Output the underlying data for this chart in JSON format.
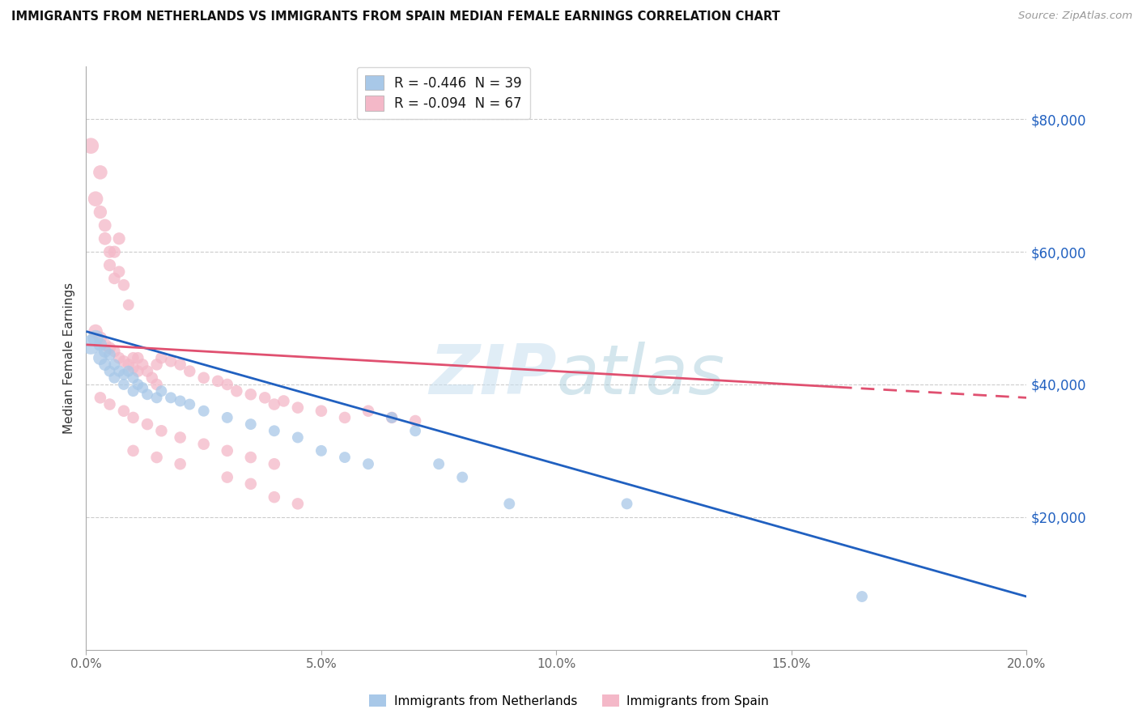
{
  "title": "IMMIGRANTS FROM NETHERLANDS VS IMMIGRANTS FROM SPAIN MEDIAN FEMALE EARNINGS CORRELATION CHART",
  "source": "Source: ZipAtlas.com",
  "ylabel": "Median Female Earnings",
  "yticks": [
    20000,
    40000,
    60000,
    80000
  ],
  "ytick_labels": [
    "$20,000",
    "$40,000",
    "$60,000",
    "$80,000"
  ],
  "ylim": [
    0,
    88000
  ],
  "xlim": [
    0,
    0.2
  ],
  "legend_blue_label": "R = -0.446  N = 39",
  "legend_pink_label": "R = -0.094  N = 67",
  "legend_blue_footer": "Immigrants from Netherlands",
  "legend_pink_footer": "Immigrants from Spain",
  "watermark": "ZIPatlas",
  "blue_color": "#a8c8e8",
  "pink_color": "#f4b8c8",
  "blue_line_color": "#2060c0",
  "pink_line_color": "#e05070",
  "blue_R_color": "#2060c0",
  "pink_R_color": "#e05070",
  "blue_line_y0": 48000,
  "blue_line_y1": 8000,
  "pink_line_y0": 46000,
  "pink_line_y1": 38000,
  "pink_line_solid_end": 0.16,
  "blue_scatter": [
    [
      0.001,
      46000
    ],
    [
      0.002,
      47000
    ],
    [
      0.003,
      44000
    ],
    [
      0.003,
      46000
    ],
    [
      0.004,
      45000
    ],
    [
      0.004,
      43000
    ],
    [
      0.005,
      44500
    ],
    [
      0.005,
      42000
    ],
    [
      0.006,
      43000
    ],
    [
      0.006,
      41000
    ],
    [
      0.007,
      42000
    ],
    [
      0.008,
      41500
    ],
    [
      0.008,
      40000
    ],
    [
      0.009,
      42000
    ],
    [
      0.01,
      41000
    ],
    [
      0.01,
      39000
    ],
    [
      0.011,
      40000
    ],
    [
      0.012,
      39500
    ],
    [
      0.013,
      38500
    ],
    [
      0.015,
      38000
    ],
    [
      0.016,
      39000
    ],
    [
      0.018,
      38000
    ],
    [
      0.02,
      37500
    ],
    [
      0.022,
      37000
    ],
    [
      0.025,
      36000
    ],
    [
      0.03,
      35000
    ],
    [
      0.035,
      34000
    ],
    [
      0.04,
      33000
    ],
    [
      0.045,
      32000
    ],
    [
      0.05,
      30000
    ],
    [
      0.055,
      29000
    ],
    [
      0.06,
      28000
    ],
    [
      0.065,
      35000
    ],
    [
      0.07,
      33000
    ],
    [
      0.075,
      28000
    ],
    [
      0.08,
      26000
    ],
    [
      0.09,
      22000
    ],
    [
      0.115,
      22000
    ],
    [
      0.165,
      8000
    ]
  ],
  "pink_scatter": [
    [
      0.001,
      76000
    ],
    [
      0.002,
      68000
    ],
    [
      0.003,
      72000
    ],
    [
      0.003,
      66000
    ],
    [
      0.004,
      62000
    ],
    [
      0.004,
      64000
    ],
    [
      0.005,
      58000
    ],
    [
      0.005,
      60000
    ],
    [
      0.006,
      60000
    ],
    [
      0.006,
      56000
    ],
    [
      0.007,
      62000
    ],
    [
      0.007,
      57000
    ],
    [
      0.008,
      55000
    ],
    [
      0.009,
      52000
    ],
    [
      0.002,
      48000
    ],
    [
      0.003,
      47000
    ],
    [
      0.004,
      46000
    ],
    [
      0.005,
      45500
    ],
    [
      0.006,
      45000
    ],
    [
      0.007,
      44000
    ],
    [
      0.008,
      43500
    ],
    [
      0.009,
      43000
    ],
    [
      0.01,
      44000
    ],
    [
      0.01,
      42500
    ],
    [
      0.011,
      44000
    ],
    [
      0.011,
      42000
    ],
    [
      0.012,
      43000
    ],
    [
      0.013,
      42000
    ],
    [
      0.014,
      41000
    ],
    [
      0.015,
      43000
    ],
    [
      0.015,
      40000
    ],
    [
      0.016,
      44000
    ],
    [
      0.018,
      43500
    ],
    [
      0.02,
      43000
    ],
    [
      0.022,
      42000
    ],
    [
      0.025,
      41000
    ],
    [
      0.028,
      40500
    ],
    [
      0.03,
      40000
    ],
    [
      0.032,
      39000
    ],
    [
      0.035,
      38500
    ],
    [
      0.038,
      38000
    ],
    [
      0.04,
      37000
    ],
    [
      0.042,
      37500
    ],
    [
      0.045,
      36500
    ],
    [
      0.05,
      36000
    ],
    [
      0.055,
      35000
    ],
    [
      0.06,
      36000
    ],
    [
      0.065,
      35000
    ],
    [
      0.07,
      34500
    ],
    [
      0.003,
      38000
    ],
    [
      0.005,
      37000
    ],
    [
      0.008,
      36000
    ],
    [
      0.01,
      35000
    ],
    [
      0.013,
      34000
    ],
    [
      0.016,
      33000
    ],
    [
      0.02,
      32000
    ],
    [
      0.025,
      31000
    ],
    [
      0.03,
      30000
    ],
    [
      0.035,
      29000
    ],
    [
      0.04,
      28000
    ],
    [
      0.01,
      30000
    ],
    [
      0.015,
      29000
    ],
    [
      0.02,
      28000
    ],
    [
      0.03,
      26000
    ],
    [
      0.035,
      25000
    ],
    [
      0.04,
      23000
    ],
    [
      0.045,
      22000
    ]
  ],
  "blue_sizes": [
    300,
    200,
    160,
    140,
    130,
    120,
    110,
    100,
    100,
    100,
    100,
    100,
    100,
    100,
    100,
    100,
    100,
    100,
    100,
    100,
    100,
    100,
    100,
    100,
    100,
    100,
    100,
    100,
    100,
    100,
    100,
    100,
    100,
    100,
    100,
    100,
    100,
    100,
    100
  ],
  "pink_sizes": [
    200,
    180,
    160,
    140,
    130,
    130,
    120,
    120,
    120,
    110,
    120,
    110,
    110,
    100,
    160,
    140,
    130,
    120,
    110,
    110,
    110,
    110,
    110,
    110,
    110,
    110,
    110,
    110,
    110,
    110,
    110,
    110,
    110,
    110,
    110,
    110,
    110,
    110,
    110,
    110,
    110,
    110,
    110,
    110,
    110,
    110,
    110,
    110,
    110,
    110,
    110,
    110,
    110,
    110,
    110,
    110,
    110,
    110,
    110,
    110,
    110,
    110,
    110,
    110,
    110,
    110,
    110
  ]
}
